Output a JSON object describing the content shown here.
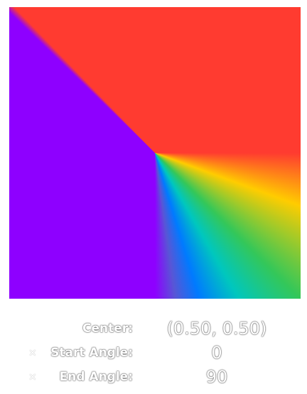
{
  "gradient": {
    "colors": [
      "#ff3b30",
      "#ffcc00",
      "#34c759",
      "#00c7be",
      "#007aff",
      "#5856d6",
      "#8e00ff"
    ]
  },
  "controls": {
    "center": {
      "label": "Center:",
      "value": "(0.50, 0.50)"
    },
    "start_angle": {
      "label": "Start Angle:",
      "value": "0"
    },
    "end_angle": {
      "label": "End Angle:",
      "value": "90"
    }
  }
}
